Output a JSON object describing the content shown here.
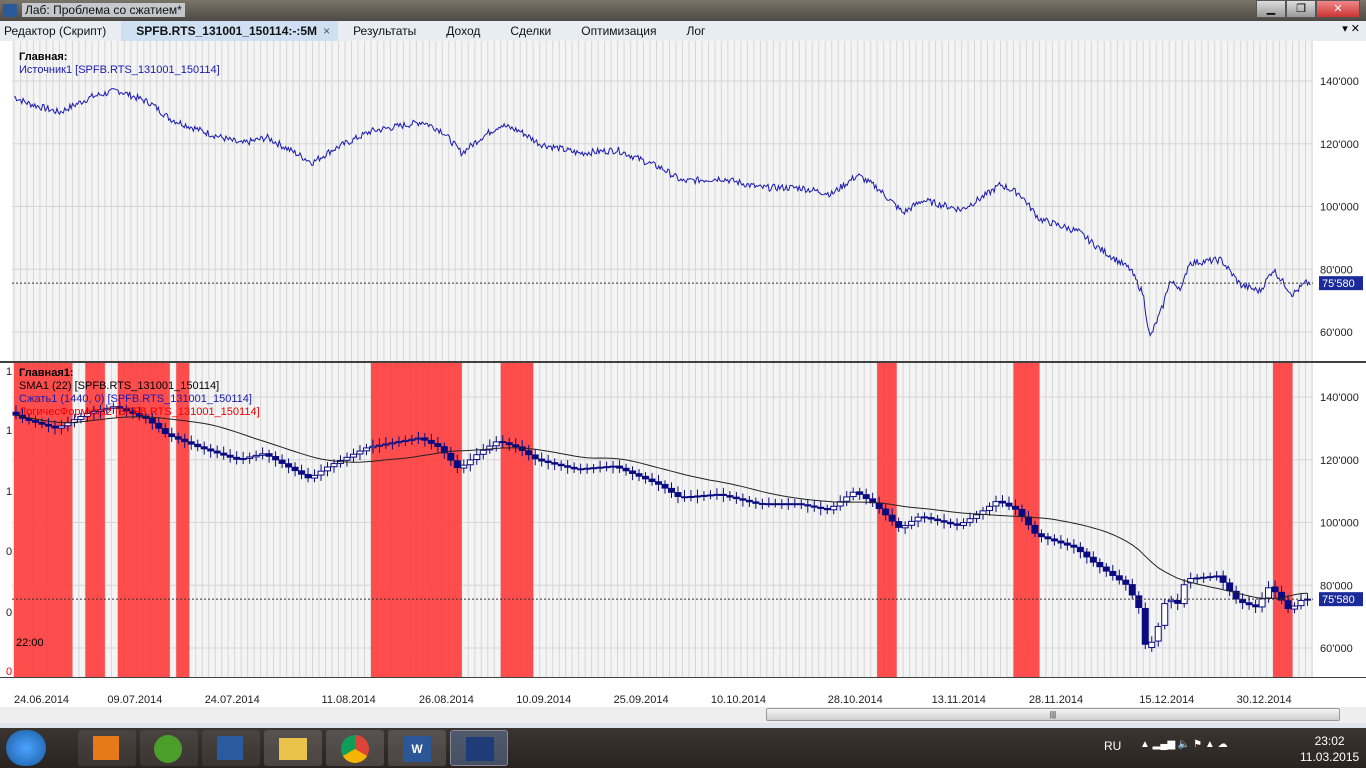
{
  "window": {
    "title": "Лаб: Проблема со сжатием*",
    "buttons": [
      "minimize",
      "maximize",
      "close"
    ]
  },
  "tabs": [
    {
      "label": "Редактор (Скрипт)",
      "active": false
    },
    {
      "label": "SPFB.RTS_131001_150114:-:5M",
      "active": true,
      "close": "×"
    },
    {
      "label": "Результаты",
      "active": false
    },
    {
      "label": "Доход",
      "active": false
    },
    {
      "label": "Сделки",
      "active": false
    },
    {
      "label": "Оптимизация",
      "active": false
    },
    {
      "label": "Лог",
      "active": false
    }
  ],
  "tab_controls": "▾ ✕",
  "panes": {
    "main": {
      "title": "Главная:",
      "series_label": "Источник1 [SPFB.RTS_131001_150114]"
    },
    "main1": {
      "title": "Главная1:",
      "sma_label": "SMA1 (22) [SPFB.RTS_131001_150114]",
      "compress_label": "Сжать1 (1440, 0) [SPFB.RTS_131001_150114]",
      "logic_label": "ЛогичесФормула2 [SPFB.RTS_131001_150114]",
      "left_axis": [
        "1",
        "1",
        "1",
        "0",
        "0",
        "0"
      ]
    }
  },
  "time_label": "22:00",
  "colors": {
    "line": "#1a1ab0",
    "candle_up": "#ffffff",
    "candle_down": "#0a0a80",
    "sma": "#222222",
    "band": "#ff3b3b",
    "last_price_bg": "#1a2a9a"
  },
  "chart_data": [
    {
      "type": "line",
      "pane": "main",
      "ylim": [
        55000,
        150000
      ],
      "yticks": [
        "140'000",
        "120'000",
        "100'000",
        "80'000",
        "60'000"
      ],
      "ytick_values": [
        140000,
        120000,
        100000,
        80000,
        60000
      ],
      "last_price": 75580,
      "last_price_label": "75'580",
      "grid": true,
      "xticks": [
        "24.06.2014",
        "09.07.2014",
        "24.07.2014",
        "11.08.2014",
        "26.08.2014",
        "10.09.2014",
        "25.09.2014",
        "10.10.2014",
        "28.10.2014",
        "13.11.2014",
        "28.11.2014",
        "15.12.2014",
        "30.12.2014"
      ],
      "series": [
        [
          "24.06.2014",
          135000
        ],
        [
          "26.06.2014",
          133000
        ],
        [
          "01.07.2014",
          130000
        ],
        [
          "06.07.2014",
          135000
        ],
        [
          "10.07.2014",
          137000
        ],
        [
          "15.07.2014",
          133000
        ],
        [
          "18.07.2014",
          128000
        ],
        [
          "23.07.2014",
          124000
        ],
        [
          "29.07.2014",
          120000
        ],
        [
          "02.08.2014",
          122000
        ],
        [
          "09.08.2014",
          114000
        ],
        [
          "12.08.2014",
          118000
        ],
        [
          "18.08.2014",
          124000
        ],
        [
          "26.08.2014",
          127000
        ],
        [
          "29.08.2014",
          124000
        ],
        [
          "01.09.2014",
          117000
        ],
        [
          "04.09.2014",
          122000
        ],
        [
          "07.09.2014",
          126000
        ],
        [
          "10.09.2014",
          124000
        ],
        [
          "13.09.2014",
          120000
        ],
        [
          "19.09.2014",
          117000
        ],
        [
          "25.09.2014",
          118000
        ],
        [
          "02.10.2014",
          112000
        ],
        [
          "05.10.2014",
          108000
        ],
        [
          "11.10.2014",
          109000
        ],
        [
          "17.10.2014",
          106000
        ],
        [
          "23.10.2014",
          106000
        ],
        [
          "28.10.2014",
          104000
        ],
        [
          "01.11.2014",
          110000
        ],
        [
          "04.11.2014",
          106000
        ],
        [
          "08.11.2014",
          98000
        ],
        [
          "11.11.2014",
          102000
        ],
        [
          "17.11.2014",
          99000
        ],
        [
          "21.11.2014",
          104000
        ],
        [
          "23.11.2014",
          107000
        ],
        [
          "26.11.2014",
          104000
        ],
        [
          "29.11.2014",
          96000
        ],
        [
          "05.12.2014",
          92000
        ],
        [
          "08.12.2014",
          87000
        ],
        [
          "13.12.2014",
          80000
        ],
        [
          "15.12.2014",
          72000
        ],
        [
          "16.12.2014",
          58000
        ],
        [
          "18.12.2014",
          68000
        ],
        [
          "19.12.2014",
          76000
        ],
        [
          "21.12.2014",
          74000
        ],
        [
          "22.12.2014",
          82000
        ],
        [
          "27.12.2014",
          83000
        ],
        [
          "30.12.2014",
          75000
        ],
        [
          "02.01.2015",
          73000
        ],
        [
          "04.01.2015",
          80000
        ],
        [
          "07.01.2015",
          72000
        ],
        [
          "09.01.2015",
          75580
        ]
      ]
    },
    {
      "type": "candlestick",
      "pane": "main1",
      "ylim": [
        55000,
        150000
      ],
      "yticks": [
        "140'000",
        "120'000",
        "100'000",
        "80'000",
        "60'000"
      ],
      "ytick_values": [
        140000,
        120000,
        100000,
        80000,
        60000
      ],
      "last_price": 75580,
      "last_price_label": "75'580",
      "sma_period": 22,
      "signal_bands": [
        [
          "24.06.2014",
          "03.07.2014"
        ],
        [
          "05.07.2014",
          "08.07.2014"
        ],
        [
          "10.07.2014",
          "18.07.2014"
        ],
        [
          "19.07.2014",
          "21.07.2014"
        ],
        [
          "18.08.2014",
          "01.09.2014"
        ],
        [
          "07.09.2014",
          "12.09.2014"
        ],
        [
          "04.11.2014",
          "07.11.2014"
        ],
        [
          "25.11.2014",
          "29.11.2014"
        ],
        [
          "04.01.2015",
          "07.01.2015"
        ]
      ]
    }
  ],
  "taskbar": {
    "items": [
      "start",
      "explorer-app",
      "utorrent",
      "wealthlab-editor",
      "file-explorer",
      "chrome",
      "word",
      "wealthlab"
    ],
    "lang": "RU",
    "time": "23:02",
    "date": "11.03.2015"
  }
}
